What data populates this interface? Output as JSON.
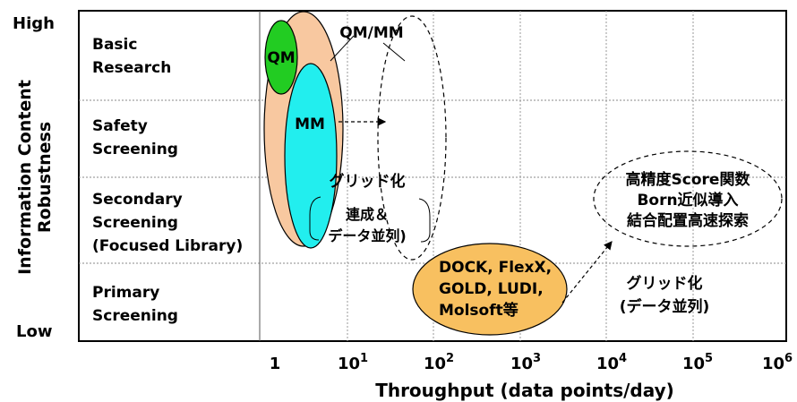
{
  "yaxis": {
    "title_line1": "Information Content",
    "title_line2": "Robustness",
    "high": "High",
    "low": "Low"
  },
  "xaxis": {
    "title": "Throughput (data points/day)",
    "ticks": [
      {
        "base": "1",
        "exp": ""
      },
      {
        "base": "10",
        "exp": "1"
      },
      {
        "base": "10",
        "exp": "2"
      },
      {
        "base": "10",
        "exp": "3"
      },
      {
        "base": "10",
        "exp": "4"
      },
      {
        "base": "10",
        "exp": "5"
      },
      {
        "base": "10",
        "exp": "6"
      }
    ]
  },
  "rows": [
    {
      "lines": [
        "Basic",
        "Research"
      ]
    },
    {
      "lines": [
        "Safety",
        "Screening"
      ]
    },
    {
      "lines": [
        "Secondary",
        "Screening",
        "(Focused Library)"
      ]
    },
    {
      "lines": [
        "Primary",
        "Screening"
      ]
    }
  ],
  "labels": {
    "qmmm": "QM/MM",
    "qm": "QM",
    "mm": "MM",
    "grid1": "グリッド化",
    "grid1_sub1": "連成＆",
    "grid1_sub2": "データ並列)",
    "dock_lines": [
      "DOCK, FlexX,",
      "GOLD, LUDI,",
      "Molsoft等"
    ],
    "future_lines": [
      "高精度Score関数",
      "Born近似導入",
      "結合配置高速探索"
    ],
    "grid2_line1": "グリッド化",
    "grid2_line2": "(データ並列)"
  },
  "colors": {
    "peach": "#F8C8A0",
    "green": "#22CC22",
    "cyan": "#22EEEE",
    "orange": "#F8C060",
    "grid": "#888888"
  }
}
